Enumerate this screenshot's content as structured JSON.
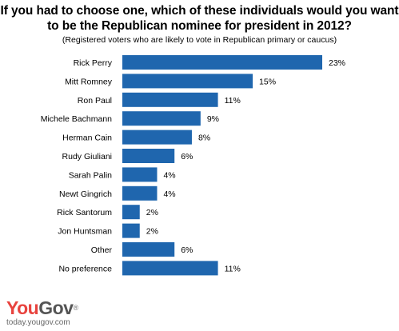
{
  "title_line1": "If you had to choose one, which of these individuals would you want",
  "title_line2": "to be the Republican nominee for president in 2012?",
  "subtitle": "(Registered voters who are likely to vote in Republican primary or caucus)",
  "brand": {
    "part1": "You",
    "part2": "Gov",
    "mark": "®",
    "url": "today.yougov.com"
  },
  "colors": {
    "bar": "#1f66ae",
    "logo_you": "#e8433e",
    "logo_gov": "#555555"
  },
  "chart_data": {
    "type": "bar",
    "orientation": "horizontal",
    "categories": [
      "Rick Perry",
      "Mitt Romney",
      "Ron Paul",
      "Michele Bachmann",
      "Herman Cain",
      "Rudy Giuliani",
      "Sarah Palin",
      "Newt Gingrich",
      "Rick Santorum",
      "Jon Huntsman",
      "Other",
      "No preference"
    ],
    "values": [
      23,
      15,
      11,
      9,
      8,
      6,
      4,
      4,
      2,
      2,
      6,
      11
    ],
    "value_labels": [
      "23%",
      "15%",
      "11%",
      "9%",
      "8%",
      "6%",
      "4%",
      "4%",
      "2%",
      "2%",
      "6%",
      "11%"
    ],
    "xlim": [
      0,
      23
    ],
    "grid": false,
    "legend": "none"
  }
}
